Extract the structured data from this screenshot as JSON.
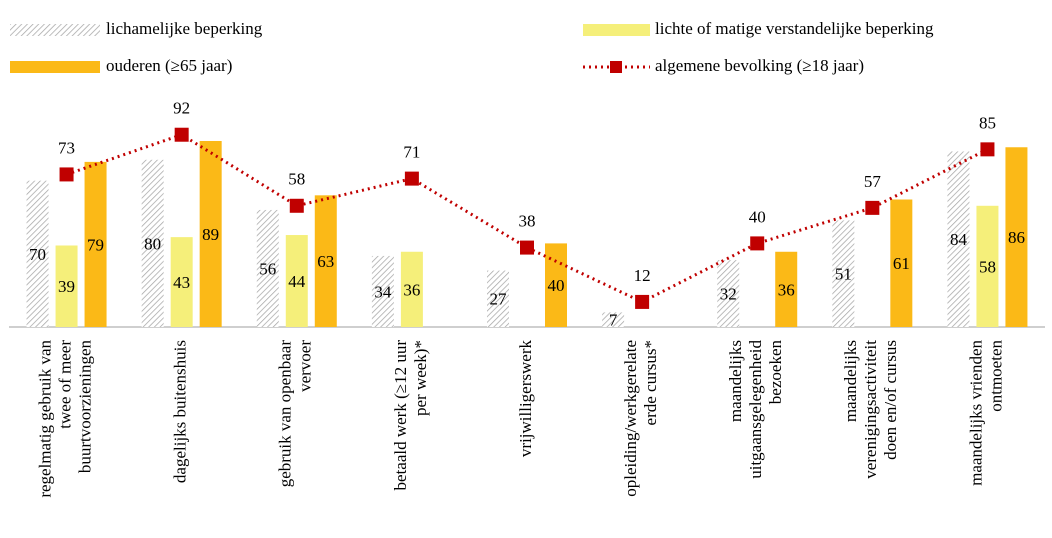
{
  "chart_data": {
    "type": "bar_line",
    "categories": [
      [
        "regelmatig gebruik van",
        "twee of meer",
        "buurtvoorzieningen"
      ],
      [
        "dagelijks buitenshuis"
      ],
      [
        "gebruik van openbaar",
        "vervoer"
      ],
      [
        "betaald werk (≥12 uur",
        "per week)*"
      ],
      [
        "vrijwilligerswerk"
      ],
      [
        "opleiding/werkgerelate",
        "erde cursus*"
      ],
      [
        "maandelijks",
        "uitgaansgelegenheid",
        "bezoeken"
      ],
      [
        "maandelijks",
        "verenigingsactiviteit",
        "doen en/of cursus"
      ],
      [
        "maandelijks vrienden",
        "ontmoeten"
      ]
    ],
    "series": [
      {
        "name": "lichamelijke beperking",
        "type": "bar",
        "color": "#a6a6a6",
        "pattern": "hatch",
        "values": [
          70,
          80,
          56,
          34,
          27,
          7,
          32,
          51,
          84
        ]
      },
      {
        "name": "lichte of matige verstandelijke beperking",
        "type": "bar",
        "color": "#f5ef7a",
        "values": [
          39,
          43,
          44,
          36,
          null,
          null,
          null,
          null,
          58
        ]
      },
      {
        "name": "ouderen (≥65 jaar)",
        "type": "bar",
        "color": "#fbb917",
        "values": [
          79,
          89,
          63,
          null,
          40,
          null,
          36,
          61,
          86
        ]
      },
      {
        "name": "algemene bevolking (≥18 jaar)",
        "type": "line",
        "color": "#c00000",
        "values": [
          73,
          92,
          58,
          71,
          38,
          12,
          40,
          57,
          85
        ]
      }
    ],
    "ylim": [
      0,
      100
    ]
  }
}
